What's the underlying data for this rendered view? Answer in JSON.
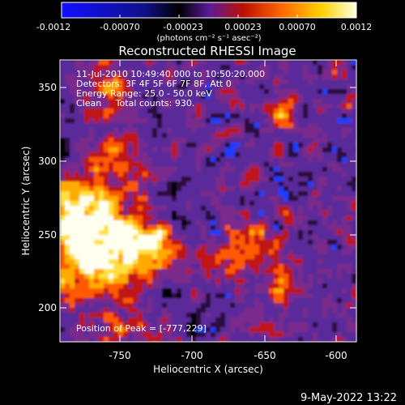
{
  "colorbar": {
    "tick_labels": [
      "-0.0012",
      "-0.00070",
      "-0.00023",
      "0.00023",
      "0.00070",
      "0.0012"
    ],
    "unit_label": "(photons cm⁻² s⁻¹ asec⁻²)",
    "colors": [
      "#1010ff",
      "#000000",
      "#5a1a9a",
      "#c01000",
      "#ff6a00",
      "#ffd000",
      "#ffffe0"
    ]
  },
  "image": {
    "title": "Reconstructed RHESSI Image",
    "info_lines": [
      "11-Jul-2010 10:49:40.000 to 10:50:20.000",
      "Detectors: 3F 4F 5F 6F 7F 8F, Att 0",
      "Energy Range: 25.0 - 50.0 keV",
      "Clean     Total counts: 930."
    ],
    "peak_label": "Position of Peak = [-777,229]"
  },
  "axes": {
    "x_label": "Heliocentric X (arcsec)",
    "y_label": "Heliocentric Y (arcsec)",
    "x_ticks": [
      "-750",
      "-700",
      "-650",
      "-600"
    ],
    "y_ticks": [
      "350",
      "300",
      "250",
      "200"
    ]
  },
  "footer": {
    "timestamp": "9-May-2022 13:22"
  }
}
